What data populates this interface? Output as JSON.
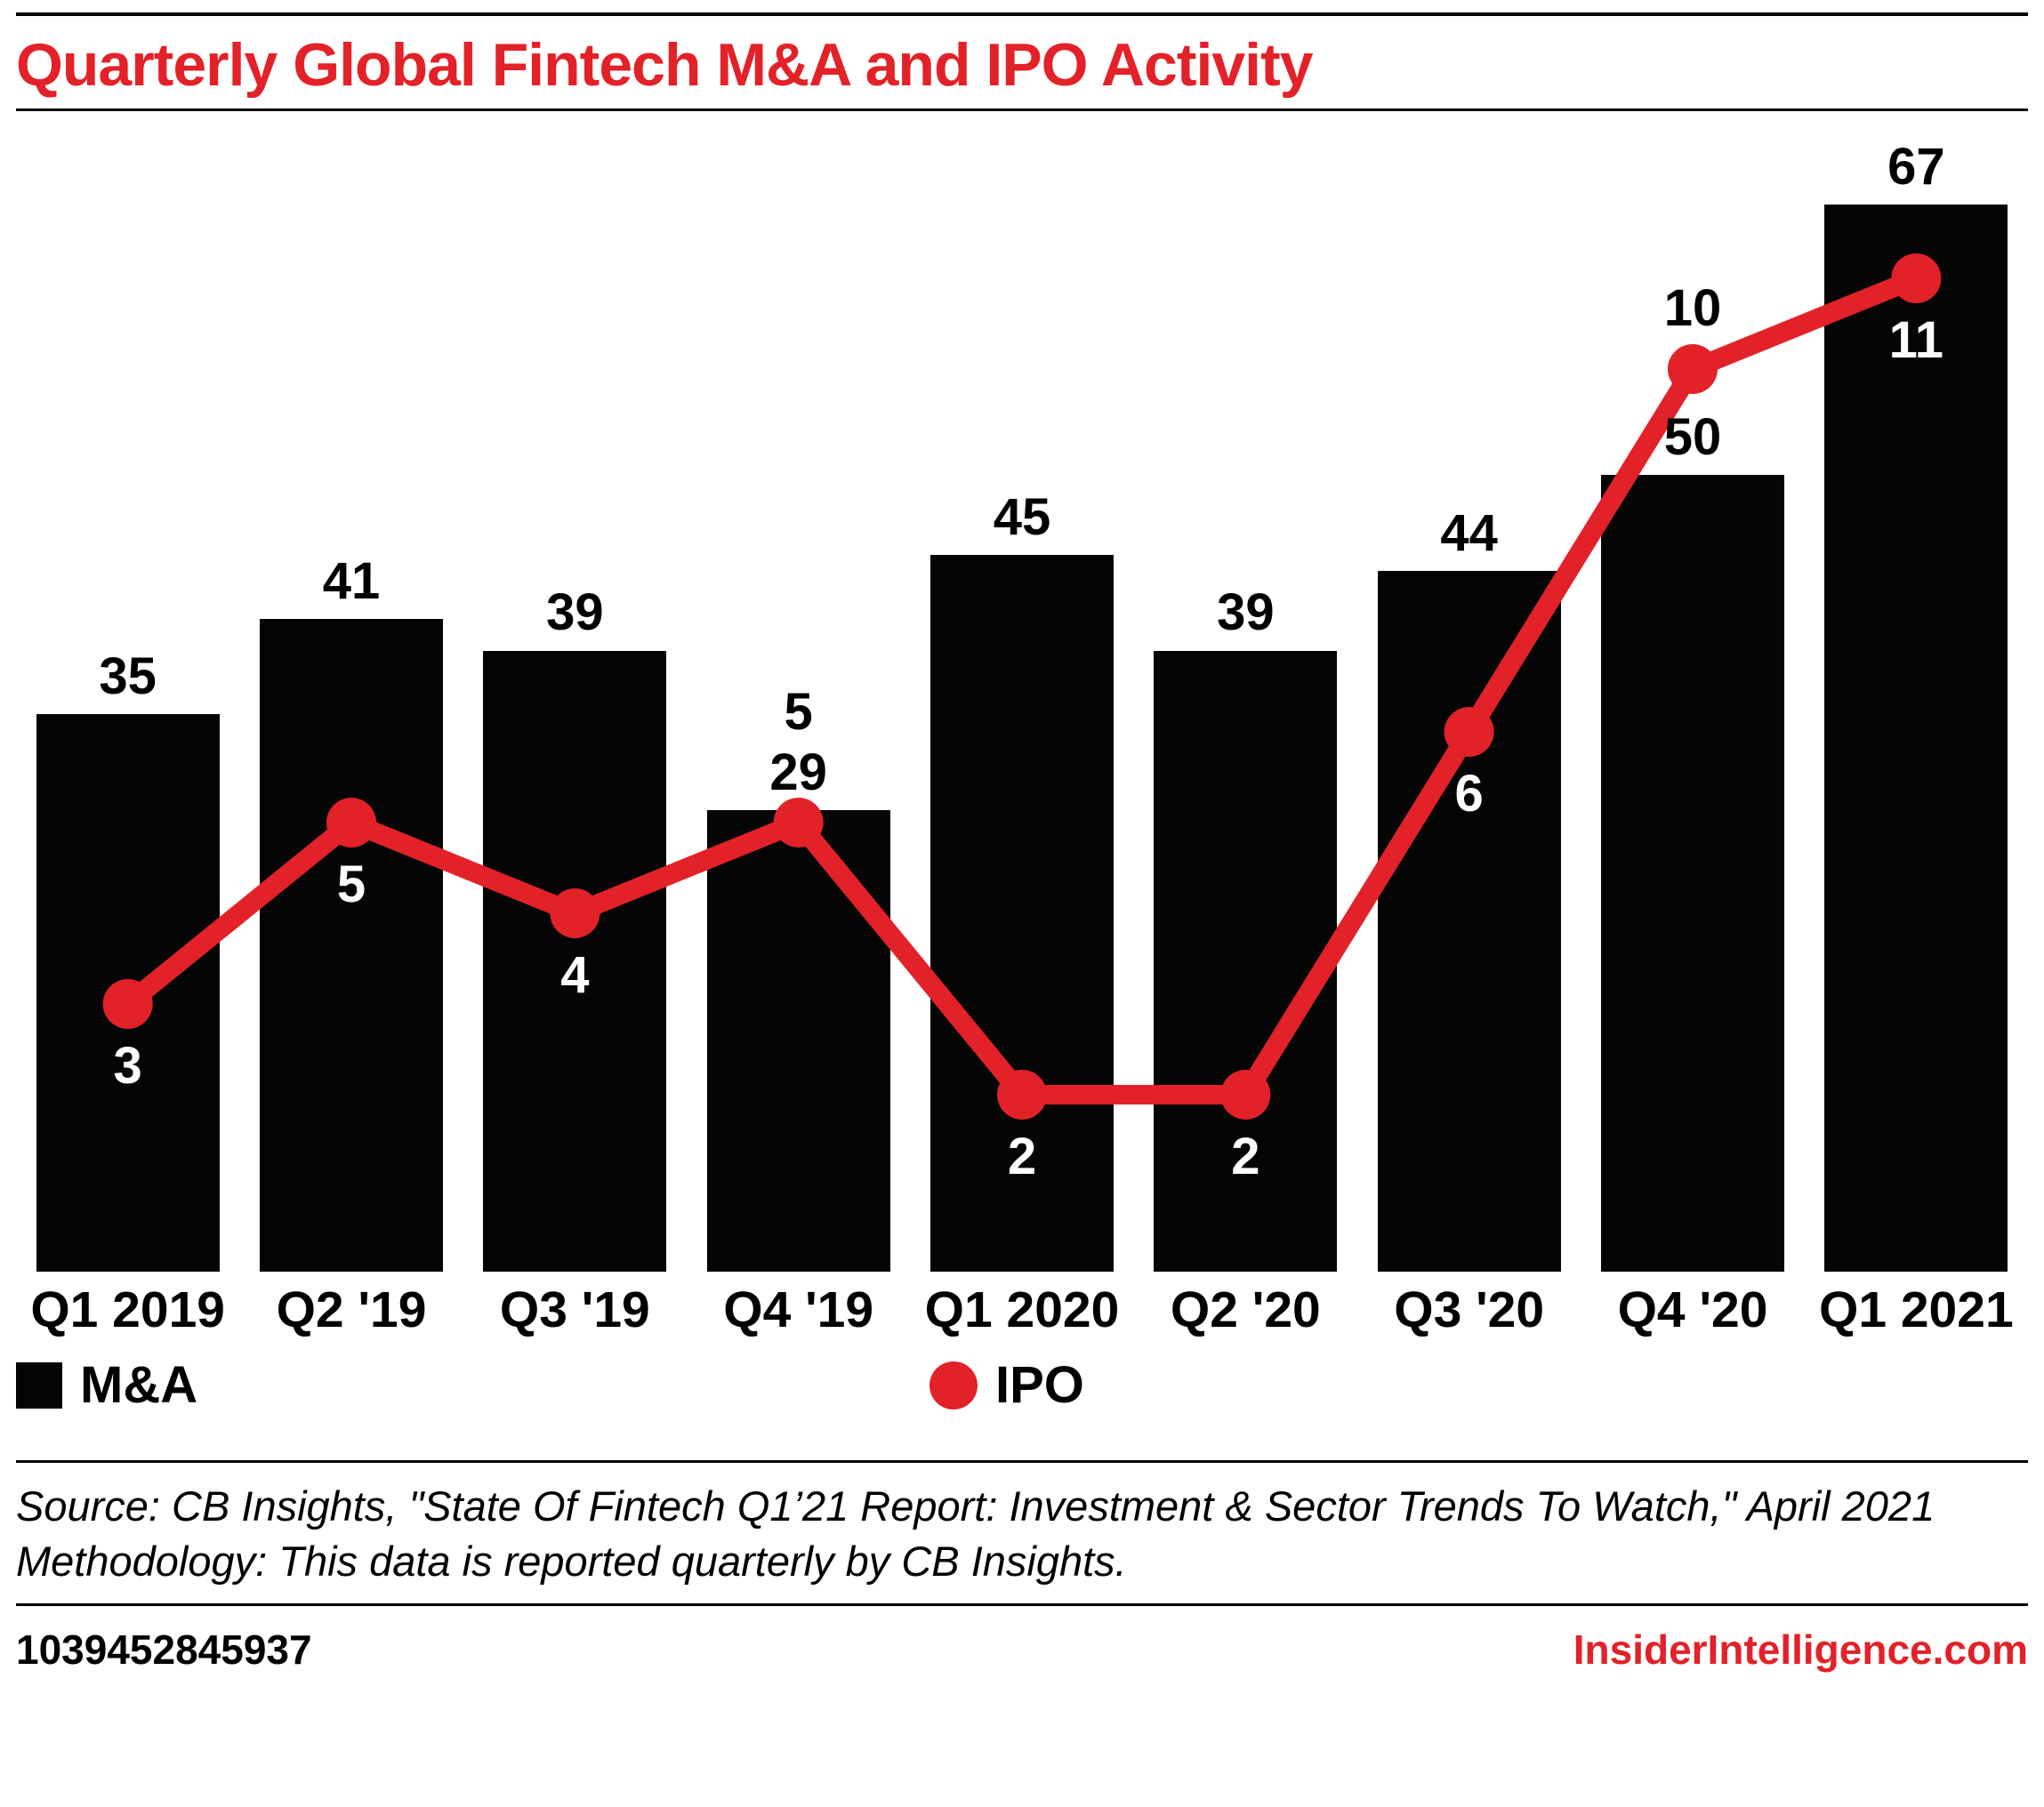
{
  "header": {
    "title": "Quarterly Global Fintech M&A and IPO Activity"
  },
  "chart_data": {
    "type": "bar",
    "subtype": "combo bar + line with point markers",
    "title": "Quarterly Global Fintech M&A and IPO Activity",
    "categories": [
      "Q1 2019",
      "Q2 '19",
      "Q3 '19",
      "Q4 '19",
      "Q1 2020",
      "Q2 '20",
      "Q3 '20",
      "Q4 '20",
      "Q1 2021"
    ],
    "series": [
      {
        "name": "M&A",
        "type": "bar",
        "color": "#050505",
        "values": [
          35,
          41,
          39,
          29,
          45,
          39,
          44,
          50,
          67
        ]
      },
      {
        "name": "IPO",
        "type": "line",
        "color": "#e32128",
        "values": [
          3,
          5,
          4,
          5,
          2,
          2,
          6,
          10,
          11
        ],
        "label_sides": [
          "below",
          "below",
          "below",
          "above",
          "below",
          "below",
          "below",
          "above",
          "below"
        ]
      }
    ],
    "xlabel": "",
    "ylabel": "",
    "ylim_bar": [
      0,
      72
    ],
    "ylim_line": [
      0,
      12.5
    ],
    "gridlines": false,
    "y_axis_visible": false,
    "data_labels": true,
    "legend_position": "bottom"
  },
  "legend": {
    "ma_label": "M&A",
    "ipo_label": "IPO"
  },
  "source": {
    "source_line": "Source: CB Insights, \"State Of Fintech Q1’21 Report: Investment & Sector Trends To Watch,\" April 2021",
    "methodology_line": "Methodology: This data is reported quarterly by CB Insights."
  },
  "footer": {
    "id": "1039452845937",
    "site": "InsiderIntelligence.com"
  },
  "colors": {
    "accent_red": "#e32128",
    "bar_black": "#050505",
    "text": "#000000",
    "background": "#ffffff"
  }
}
